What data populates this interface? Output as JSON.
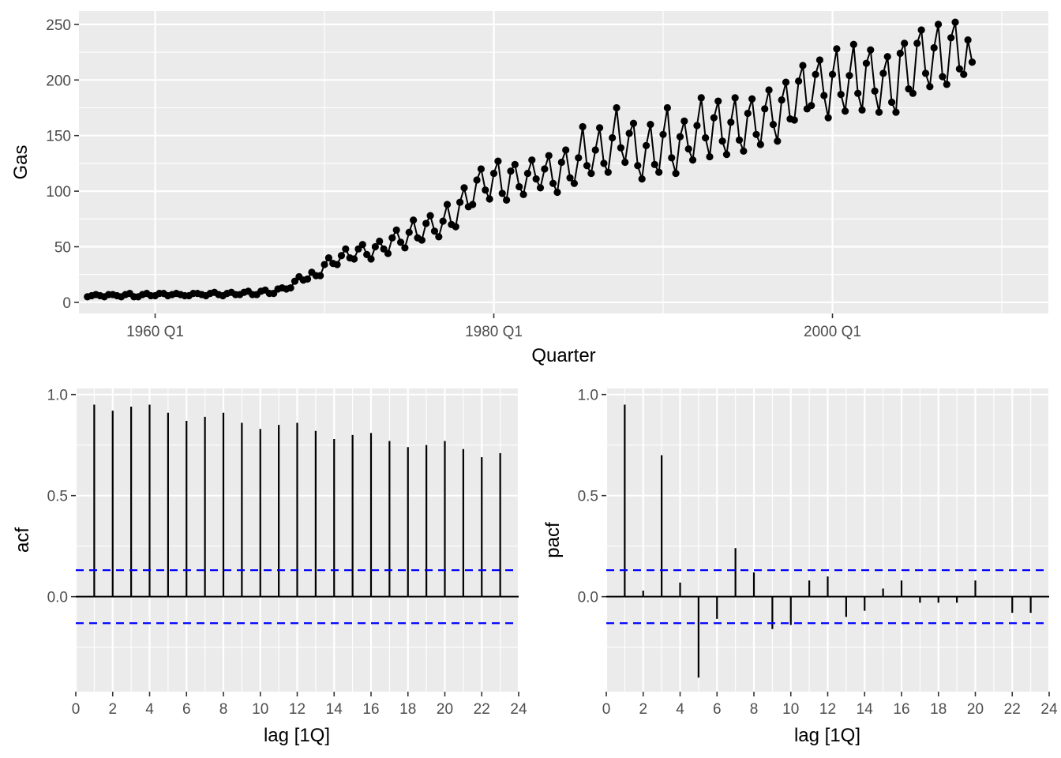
{
  "chart_data": [
    {
      "type": "line",
      "xlabel": "Quarter",
      "ylabel": "Gas",
      "x_start": "1956 Q1",
      "x_end": "2010 Q2",
      "x_range": [
        "1955 Q3",
        "2012 Q4"
      ],
      "x_ticks": [
        {
          "value": "1960 Q1",
          "label": "1960 Q1"
        },
        {
          "value": "1980 Q1",
          "label": "1980 Q1"
        },
        {
          "value": "2000 Q1",
          "label": "2000 Q1"
        }
      ],
      "ylim": [
        -10,
        262
      ],
      "y_ticks": [
        0,
        50,
        100,
        150,
        200,
        250
      ],
      "markers": true,
      "grid": true,
      "values": [
        5,
        6,
        7,
        6,
        5,
        7,
        7,
        6,
        5,
        7,
        8,
        5,
        5,
        7,
        8,
        6,
        6,
        8,
        8,
        6,
        7,
        8,
        7,
        6,
        6,
        8,
        8,
        7,
        6,
        8,
        9,
        7,
        6,
        8,
        9,
        7,
        7,
        9,
        10,
        7,
        7,
        10,
        11,
        8,
        8,
        12,
        13,
        12,
        13,
        19,
        23,
        20,
        21,
        27,
        24,
        24,
        34,
        40,
        35,
        34,
        42,
        48,
        40,
        39,
        48,
        52,
        43,
        39,
        50,
        55,
        48,
        44,
        58,
        65,
        54,
        49,
        63,
        74,
        58,
        56,
        71,
        78,
        64,
        59,
        73,
        88,
        70,
        68,
        90,
        103,
        86,
        88,
        110,
        120,
        101,
        93,
        116,
        127,
        98,
        92,
        118,
        124,
        104,
        97,
        116,
        128,
        111,
        103,
        120,
        132,
        107,
        99,
        126,
        137,
        112,
        107,
        130,
        158,
        123,
        116,
        137,
        157,
        125,
        117,
        148,
        175,
        139,
        126,
        152,
        161,
        123,
        111,
        141,
        160,
        124,
        117,
        151,
        175,
        130,
        116,
        149,
        163,
        138,
        128,
        159,
        184,
        148,
        131,
        166,
        181,
        145,
        133,
        162,
        184,
        146,
        136,
        170,
        183,
        151,
        142,
        174,
        191,
        160,
        145,
        182,
        198,
        165,
        164,
        199,
        213,
        174,
        177,
        205,
        218,
        186,
        166,
        205,
        228,
        187,
        172,
        204,
        232,
        188,
        173,
        215,
        227,
        190,
        171,
        206,
        221,
        180,
        171,
        224,
        233,
        192,
        188,
        233,
        245,
        206,
        194,
        229,
        250,
        203,
        196,
        238,
        252,
        210,
        205,
        236,
        216
      ]
    },
    {
      "type": "bar",
      "xlabel": "lag [1Q]",
      "ylabel": "acf",
      "lags": [
        1,
        2,
        3,
        4,
        5,
        6,
        7,
        8,
        9,
        10,
        11,
        12,
        13,
        14,
        15,
        16,
        17,
        18,
        19,
        20,
        21,
        22,
        23
      ],
      "values": [
        0.95,
        0.92,
        0.94,
        0.95,
        0.91,
        0.87,
        0.89,
        0.91,
        0.86,
        0.83,
        0.85,
        0.86,
        0.82,
        0.78,
        0.8,
        0.81,
        0.77,
        0.74,
        0.75,
        0.77,
        0.73,
        0.69,
        0.71
      ],
      "xlim": [
        0,
        24
      ],
      "x_ticks": [
        0,
        2,
        4,
        6,
        8,
        10,
        12,
        14,
        16,
        18,
        20,
        22,
        24
      ],
      "ylim": [
        -0.47,
        1.03
      ],
      "y_ticks": [
        {
          "value": 0.0,
          "label": "0.0"
        },
        {
          "value": 0.5,
          "label": "0.5"
        },
        {
          "value": 1.0,
          "label": "1.0"
        }
      ],
      "ci": 0.131,
      "grid": true
    },
    {
      "type": "bar",
      "xlabel": "lag [1Q]",
      "ylabel": "pacf",
      "lags": [
        1,
        2,
        3,
        4,
        5,
        6,
        7,
        8,
        9,
        10,
        11,
        12,
        13,
        14,
        15,
        16,
        17,
        18,
        19,
        20,
        21,
        22,
        23
      ],
      "values": [
        0.95,
        0.03,
        0.7,
        0.07,
        -0.4,
        -0.11,
        0.24,
        0.12,
        -0.16,
        -0.14,
        0.08,
        0.1,
        -0.1,
        -0.07,
        0.04,
        0.08,
        -0.03,
        -0.03,
        -0.03,
        0.08,
        0.0,
        -0.08,
        -0.08
      ],
      "xlim": [
        0,
        24
      ],
      "x_ticks": [
        0,
        2,
        4,
        6,
        8,
        10,
        12,
        14,
        16,
        18,
        20,
        22,
        24
      ],
      "ylim": [
        -0.47,
        1.03
      ],
      "y_ticks": [
        {
          "value": 0.0,
          "label": "0.0"
        },
        {
          "value": 0.5,
          "label": "0.5"
        },
        {
          "value": 1.0,
          "label": "1.0"
        }
      ],
      "ci": 0.131,
      "grid": true
    }
  ]
}
